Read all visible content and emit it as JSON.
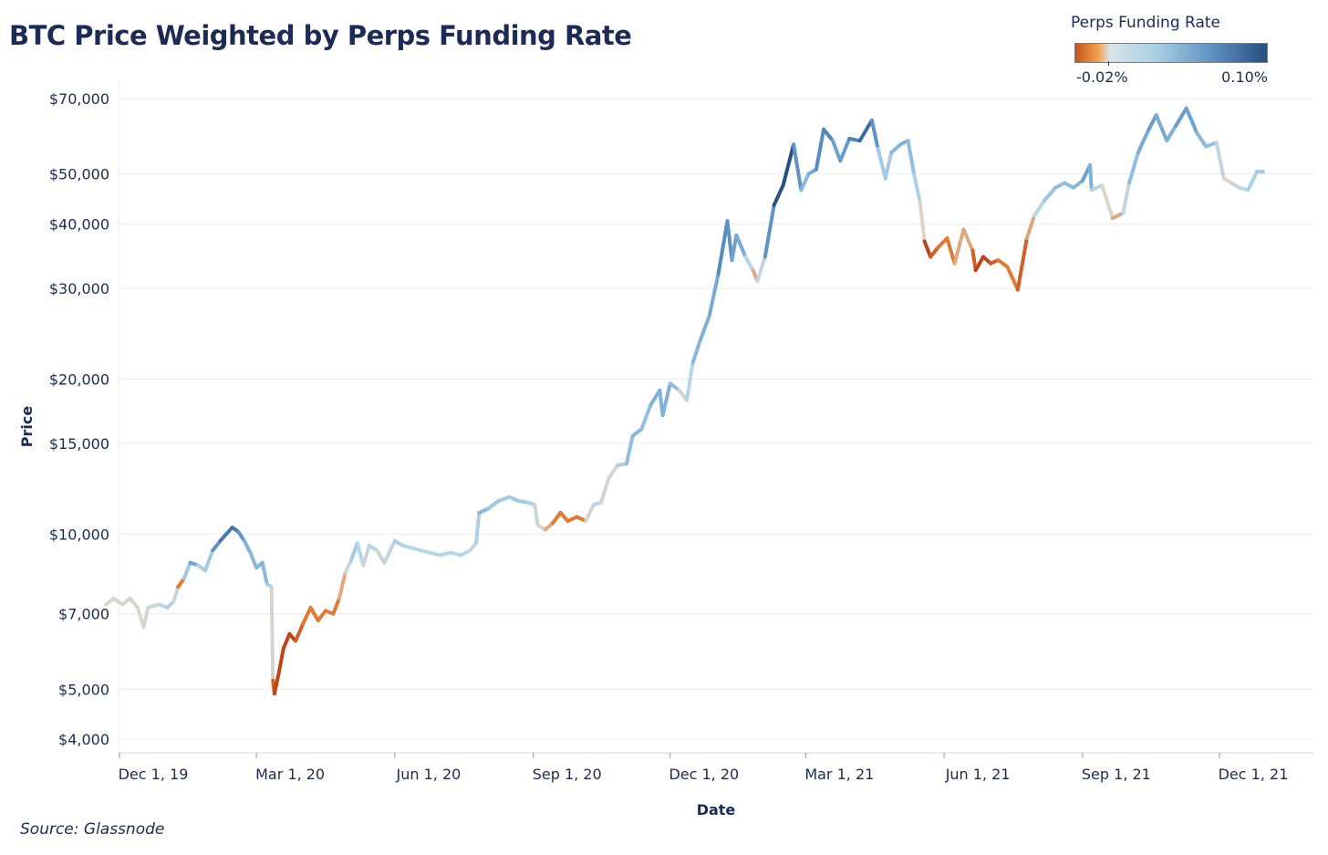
{
  "title": "BTC Price Weighted by Perps Funding Rate",
  "legend": {
    "title": "Perps Funding Rate",
    "min_label": "-0.02%",
    "max_label": "0.10%",
    "colors": [
      "#c8511d",
      "#f1a24e",
      "#d9e4ea",
      "#a9d0e6",
      "#5d8fc0",
      "#254f80"
    ]
  },
  "source": "Source: Glassnode",
  "chart_data": {
    "type": "line",
    "title": "BTC Price Weighted by Perps Funding Rate",
    "xlabel": "Date",
    "ylabel": "Price",
    "y_scale": "log",
    "ylim": [
      3800,
      75000
    ],
    "y_ticks": [
      4000,
      5000,
      7000,
      10000,
      15000,
      20000,
      30000,
      40000,
      50000,
      70000
    ],
    "y_tick_labels": [
      "$4,000",
      "$5,000",
      "$7,000",
      "$10,000",
      "$15,000",
      "$20,000",
      "$30,000",
      "$40,000",
      "$50,000",
      "$70,000"
    ],
    "x_ticks": [
      "2019-12-01",
      "2020-03-01",
      "2020-06-01",
      "2020-09-01",
      "2020-12-01",
      "2021-03-01",
      "2021-06-01",
      "2021-09-01",
      "2021-12-01"
    ],
    "x_tick_labels": [
      "Dec 1, 19",
      "Mar 1, 20",
      "Jun 1, 20",
      "Sep 1, 20",
      "Dec 1, 20",
      "Mar 1, 21",
      "Jun 1, 21",
      "Sep 1, 21",
      "Dec 1, 21"
    ],
    "grid": true,
    "color_encoding": "Perps Funding Rate",
    "series": [
      {
        "points": [
          {
            "x": "2019-11-22",
            "y": 7300,
            "funding": 0.0
          },
          {
            "x": "2019-11-27",
            "y": 7500,
            "funding": 0.0
          },
          {
            "x": "2019-12-03",
            "y": 7300,
            "funding": 0.0
          },
          {
            "x": "2019-12-08",
            "y": 7500,
            "funding": 0.01
          },
          {
            "x": "2019-12-13",
            "y": 7200,
            "funding": 0.0
          },
          {
            "x": "2019-12-17",
            "y": 6600,
            "funding": 0.0
          },
          {
            "x": "2019-12-20",
            "y": 7200,
            "funding": 0.01
          },
          {
            "x": "2019-12-27",
            "y": 7300,
            "funding": 0.01
          },
          {
            "x": "2020-01-02",
            "y": 7200,
            "funding": 0.02
          },
          {
            "x": "2020-01-06",
            "y": 7400,
            "funding": 0.03
          },
          {
            "x": "2020-01-09",
            "y": 7900,
            "funding": -0.01
          },
          {
            "x": "2020-01-13",
            "y": 8200,
            "funding": -0.01
          },
          {
            "x": "2020-01-17",
            "y": 8800,
            "funding": 0.07
          },
          {
            "x": "2020-01-22",
            "y": 8700,
            "funding": 0.05
          },
          {
            "x": "2020-01-27",
            "y": 8500,
            "funding": 0.0
          },
          {
            "x": "2020-02-01",
            "y": 9300,
            "funding": 0.06
          },
          {
            "x": "2020-02-06",
            "y": 9700,
            "funding": 0.08
          },
          {
            "x": "2020-02-10",
            "y": 10000,
            "funding": 0.09
          },
          {
            "x": "2020-02-14",
            "y": 10300,
            "funding": 0.08
          },
          {
            "x": "2020-02-18",
            "y": 10100,
            "funding": 0.09
          },
          {
            "x": "2020-02-22",
            "y": 9700,
            "funding": 0.05
          },
          {
            "x": "2020-02-26",
            "y": 9200,
            "funding": 0.05
          },
          {
            "x": "2020-03-01",
            "y": 8600,
            "funding": 0.04
          },
          {
            "x": "2020-03-05",
            "y": 8800,
            "funding": 0.05
          },
          {
            "x": "2020-03-08",
            "y": 8000,
            "funding": 0.04
          },
          {
            "x": "2020-03-11",
            "y": 7900,
            "funding": 0.02
          },
          {
            "x": "2020-03-12",
            "y": 5200,
            "funding": -0.01
          },
          {
            "x": "2020-03-13",
            "y": 4900,
            "funding": -0.02
          },
          {
            "x": "2020-03-16",
            "y": 5400,
            "funding": -0.02
          },
          {
            "x": "2020-03-19",
            "y": 6000,
            "funding": -0.02
          },
          {
            "x": "2020-03-23",
            "y": 6400,
            "funding": -0.02
          },
          {
            "x": "2020-03-27",
            "y": 6200,
            "funding": -0.02
          },
          {
            "x": "2020-04-01",
            "y": 6700,
            "funding": -0.01
          },
          {
            "x": "2020-04-06",
            "y": 7200,
            "funding": -0.01
          },
          {
            "x": "2020-04-11",
            "y": 6800,
            "funding": -0.01
          },
          {
            "x": "2020-04-16",
            "y": 7100,
            "funding": -0.01
          },
          {
            "x": "2020-04-21",
            "y": 7000,
            "funding": -0.01
          },
          {
            "x": "2020-04-25",
            "y": 7500,
            "funding": -0.01
          },
          {
            "x": "2020-04-29",
            "y": 8400,
            "funding": 0.0
          },
          {
            "x": "2020-05-03",
            "y": 8900,
            "funding": 0.02
          },
          {
            "x": "2020-05-07",
            "y": 9600,
            "funding": 0.04
          },
          {
            "x": "2020-05-11",
            "y": 8700,
            "funding": 0.0
          },
          {
            "x": "2020-05-15",
            "y": 9500,
            "funding": 0.02
          },
          {
            "x": "2020-05-20",
            "y": 9300,
            "funding": 0.02
          },
          {
            "x": "2020-05-25",
            "y": 8800,
            "funding": 0.0
          },
          {
            "x": "2020-06-01",
            "y": 9700,
            "funding": 0.03
          },
          {
            "x": "2020-06-06",
            "y": 9500,
            "funding": 0.02
          },
          {
            "x": "2020-06-12",
            "y": 9400,
            "funding": 0.02
          },
          {
            "x": "2020-06-18",
            "y": 9300,
            "funding": 0.02
          },
          {
            "x": "2020-06-24",
            "y": 9200,
            "funding": 0.02
          },
          {
            "x": "2020-07-01",
            "y": 9100,
            "funding": 0.02
          },
          {
            "x": "2020-07-08",
            "y": 9200,
            "funding": 0.02
          },
          {
            "x": "2020-07-15",
            "y": 9100,
            "funding": 0.02
          },
          {
            "x": "2020-07-21",
            "y": 9300,
            "funding": 0.02
          },
          {
            "x": "2020-07-25",
            "y": 9600,
            "funding": 0.0
          },
          {
            "x": "2020-07-27",
            "y": 11000,
            "funding": 0.05
          },
          {
            "x": "2020-08-02",
            "y": 11200,
            "funding": 0.04
          },
          {
            "x": "2020-08-09",
            "y": 11600,
            "funding": 0.03
          },
          {
            "x": "2020-08-16",
            "y": 11800,
            "funding": 0.03
          },
          {
            "x": "2020-08-22",
            "y": 11600,
            "funding": 0.03
          },
          {
            "x": "2020-08-29",
            "y": 11500,
            "funding": 0.03
          },
          {
            "x": "2020-09-02",
            "y": 11400,
            "funding": 0.02
          },
          {
            "x": "2020-09-04",
            "y": 10400,
            "funding": 0.0
          },
          {
            "x": "2020-09-09",
            "y": 10200,
            "funding": 0.0
          },
          {
            "x": "2020-09-14",
            "y": 10500,
            "funding": -0.01
          },
          {
            "x": "2020-09-19",
            "y": 11000,
            "funding": -0.01
          },
          {
            "x": "2020-09-24",
            "y": 10600,
            "funding": -0.01
          },
          {
            "x": "2020-09-30",
            "y": 10800,
            "funding": -0.01
          },
          {
            "x": "2020-10-06",
            "y": 10600,
            "funding": -0.01
          },
          {
            "x": "2020-10-11",
            "y": 11400,
            "funding": 0.02
          },
          {
            "x": "2020-10-16",
            "y": 11500,
            "funding": 0.02
          },
          {
            "x": "2020-10-21",
            "y": 12800,
            "funding": -0.01
          },
          {
            "x": "2020-10-27",
            "y": 13600,
            "funding": 0.02
          },
          {
            "x": "2020-11-02",
            "y": 13700,
            "funding": 0.03
          },
          {
            "x": "2020-11-06",
            "y": 15500,
            "funding": 0.05
          },
          {
            "x": "2020-11-12",
            "y": 16000,
            "funding": 0.04
          },
          {
            "x": "2020-11-18",
            "y": 17800,
            "funding": 0.04
          },
          {
            "x": "2020-11-24",
            "y": 19000,
            "funding": 0.06
          },
          {
            "x": "2020-11-26",
            "y": 17000,
            "funding": 0.04
          },
          {
            "x": "2020-12-01",
            "y": 19600,
            "funding": 0.06
          },
          {
            "x": "2020-12-07",
            "y": 19000,
            "funding": 0.02
          },
          {
            "x": "2020-12-12",
            "y": 18200,
            "funding": 0.0
          },
          {
            "x": "2020-12-16",
            "y": 21500,
            "funding": 0.04
          },
          {
            "x": "2020-12-21",
            "y": 23800,
            "funding": 0.05
          },
          {
            "x": "2020-12-27",
            "y": 26500,
            "funding": 0.05
          },
          {
            "x": "2021-01-02",
            "y": 32000,
            "funding": 0.06
          },
          {
            "x": "2021-01-08",
            "y": 40500,
            "funding": 0.09
          },
          {
            "x": "2021-01-11",
            "y": 34000,
            "funding": 0.05
          },
          {
            "x": "2021-01-14",
            "y": 38000,
            "funding": 0.07
          },
          {
            "x": "2021-01-20",
            "y": 34500,
            "funding": 0.04
          },
          {
            "x": "2021-01-25",
            "y": 32500,
            "funding": 0.0
          },
          {
            "x": "2021-01-28",
            "y": 31000,
            "funding": -0.01
          },
          {
            "x": "2021-02-02",
            "y": 34500,
            "funding": 0.04
          },
          {
            "x": "2021-02-08",
            "y": 43500,
            "funding": 0.1
          },
          {
            "x": "2021-02-14",
            "y": 47500,
            "funding": 0.1
          },
          {
            "x": "2021-02-21",
            "y": 57000,
            "funding": 0.1
          },
          {
            "x": "2021-02-26",
            "y": 46500,
            "funding": 0.04
          },
          {
            "x": "2021-03-03",
            "y": 50000,
            "funding": 0.05
          },
          {
            "x": "2021-03-08",
            "y": 51000,
            "funding": 0.06
          },
          {
            "x": "2021-03-13",
            "y": 61000,
            "funding": 0.09
          },
          {
            "x": "2021-03-19",
            "y": 58000,
            "funding": 0.07
          },
          {
            "x": "2021-03-24",
            "y": 53000,
            "funding": 0.05
          },
          {
            "x": "2021-03-30",
            "y": 58500,
            "funding": 0.08
          },
          {
            "x": "2021-04-06",
            "y": 58000,
            "funding": 0.08
          },
          {
            "x": "2021-04-14",
            "y": 63500,
            "funding": 0.1
          },
          {
            "x": "2021-04-18",
            "y": 56000,
            "funding": 0.04
          },
          {
            "x": "2021-04-23",
            "y": 49000,
            "funding": 0.02
          },
          {
            "x": "2021-04-27",
            "y": 55000,
            "funding": 0.04
          },
          {
            "x": "2021-05-03",
            "y": 57000,
            "funding": 0.05
          },
          {
            "x": "2021-05-08",
            "y": 58000,
            "funding": 0.05
          },
          {
            "x": "2021-05-12",
            "y": 50000,
            "funding": 0.03
          },
          {
            "x": "2021-05-16",
            "y": 44000,
            "funding": 0.02
          },
          {
            "x": "2021-05-19",
            "y": 37000,
            "funding": -0.02
          },
          {
            "x": "2021-05-23",
            "y": 34500,
            "funding": -0.02
          },
          {
            "x": "2021-05-28",
            "y": 36000,
            "funding": -0.01
          },
          {
            "x": "2021-06-03",
            "y": 37500,
            "funding": -0.01
          },
          {
            "x": "2021-06-08",
            "y": 33500,
            "funding": -0.01
          },
          {
            "x": "2021-06-14",
            "y": 39000,
            "funding": 0.0
          },
          {
            "x": "2021-06-20",
            "y": 35500,
            "funding": -0.01
          },
          {
            "x": "2021-06-22",
            "y": 32500,
            "funding": -0.02
          },
          {
            "x": "2021-06-27",
            "y": 34500,
            "funding": -0.02
          },
          {
            "x": "2021-07-02",
            "y": 33500,
            "funding": -0.02
          },
          {
            "x": "2021-07-07",
            "y": 34000,
            "funding": -0.01
          },
          {
            "x": "2021-07-13",
            "y": 33000,
            "funding": -0.01
          },
          {
            "x": "2021-07-20",
            "y": 29800,
            "funding": -0.01
          },
          {
            "x": "2021-07-26",
            "y": 37500,
            "funding": -0.02
          },
          {
            "x": "2021-07-31",
            "y": 41500,
            "funding": 0.01
          },
          {
            "x": "2021-08-07",
            "y": 44500,
            "funding": 0.03
          },
          {
            "x": "2021-08-14",
            "y": 47000,
            "funding": 0.04
          },
          {
            "x": "2021-08-20",
            "y": 48000,
            "funding": 0.04
          },
          {
            "x": "2021-08-26",
            "y": 47000,
            "funding": 0.04
          },
          {
            "x": "2021-09-01",
            "y": 48500,
            "funding": 0.05
          },
          {
            "x": "2021-09-06",
            "y": 52000,
            "funding": 0.07
          },
          {
            "x": "2021-09-07",
            "y": 46500,
            "funding": 0.03
          },
          {
            "x": "2021-09-14",
            "y": 47500,
            "funding": 0.01
          },
          {
            "x": "2021-09-21",
            "y": 41000,
            "funding": -0.01
          },
          {
            "x": "2021-09-28",
            "y": 42000,
            "funding": 0.0
          },
          {
            "x": "2021-10-02",
            "y": 48000,
            "funding": 0.03
          },
          {
            "x": "2021-10-08",
            "y": 55000,
            "funding": 0.05
          },
          {
            "x": "2021-10-15",
            "y": 61000,
            "funding": 0.06
          },
          {
            "x": "2021-10-20",
            "y": 65000,
            "funding": 0.07
          },
          {
            "x": "2021-10-27",
            "y": 58000,
            "funding": 0.04
          },
          {
            "x": "2021-11-02",
            "y": 62000,
            "funding": 0.06
          },
          {
            "x": "2021-11-09",
            "y": 67000,
            "funding": 0.07
          },
          {
            "x": "2021-11-16",
            "y": 60000,
            "funding": 0.05
          },
          {
            "x": "2021-11-22",
            "y": 56500,
            "funding": 0.04
          },
          {
            "x": "2021-11-29",
            "y": 57500,
            "funding": 0.04
          },
          {
            "x": "2021-12-04",
            "y": 49000,
            "funding": -0.01
          },
          {
            "x": "2021-12-09",
            "y": 48000,
            "funding": 0.01
          },
          {
            "x": "2021-12-14",
            "y": 47000,
            "funding": 0.01
          },
          {
            "x": "2021-12-20",
            "y": 46500,
            "funding": 0.02
          },
          {
            "x": "2021-12-26",
            "y": 50500,
            "funding": 0.03
          },
          {
            "x": "2021-12-30",
            "y": 50500,
            "funding": 0.03
          }
        ]
      }
    ]
  }
}
